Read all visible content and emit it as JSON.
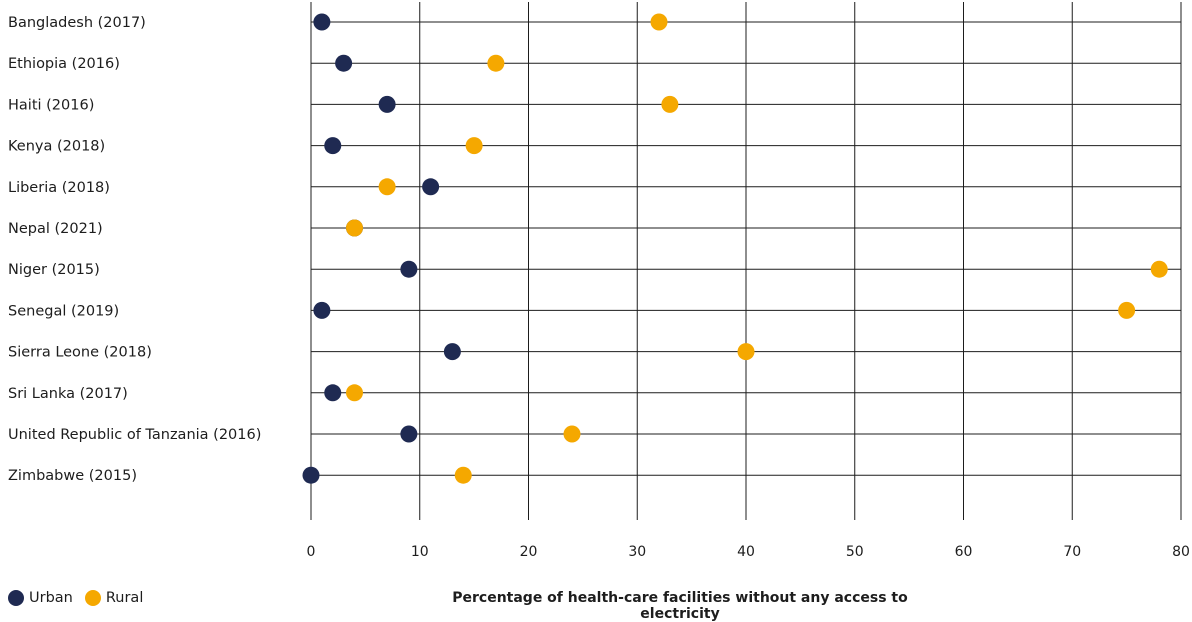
{
  "chart_data": {
    "type": "scatter",
    "categories": [
      "Bangladesh (2017)",
      "Ethiopia (2016)",
      "Haiti (2016)",
      "Kenya (2018)",
      "Liberia (2018)",
      "Nepal (2021)",
      "Niger (2015)",
      "Senegal (2019)",
      "Sierra Leone (2018)",
      "Sri Lanka (2017)",
      "United Republic of Tanzania (2016)",
      "Zimbabwe (2015)"
    ],
    "series": [
      {
        "name": "Urban",
        "color": "#1f2a52",
        "values": [
          1,
          3,
          7,
          2,
          11,
          4,
          9,
          1,
          13,
          2,
          9,
          0
        ]
      },
      {
        "name": "Rural",
        "color": "#f5a800",
        "values": [
          32,
          17,
          33,
          15,
          7,
          4,
          78,
          75,
          40,
          4,
          24,
          14
        ]
      }
    ],
    "xlim": [
      0,
      80
    ],
    "xticks": [
      0,
      10,
      20,
      30,
      40,
      50,
      60,
      70,
      80
    ],
    "xlabel": "Percentage of health-care facilities without any access to electricity",
    "grid": "vertical",
    "legend_position": "bottom-left"
  },
  "legend": {
    "urban": "Urban",
    "rural": "Rural"
  }
}
